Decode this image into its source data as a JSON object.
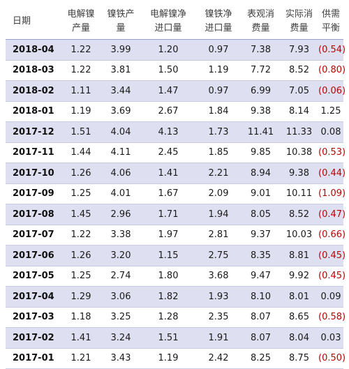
{
  "headers": [
    {
      "l1": "日期",
      "l2": ""
    },
    {
      "l1": "电解镍",
      "l2": "产量"
    },
    {
      "l1": "镍铁产",
      "l2": "量"
    },
    {
      "l1": "电解镍净",
      "l2": "进口量"
    },
    {
      "l1": "镍铁净",
      "l2": "进口量"
    },
    {
      "l1": "表观消",
      "l2": "费量"
    },
    {
      "l1": "实际消",
      "l2": "费量"
    },
    {
      "l1": "供需",
      "l2": "平衡"
    }
  ],
  "rows": [
    {
      "date": "2018-04",
      "v1": "1.22",
      "v2": "3.99",
      "v3": "1.20",
      "v4": "0.97",
      "v5": "7.38",
      "v6": "7.93",
      "v7": "(0.54)",
      "neg": true
    },
    {
      "date": "2018-03",
      "v1": "1.22",
      "v2": "3.81",
      "v3": "1.50",
      "v4": "1.19",
      "v5": "7.72",
      "v6": "8.52",
      "v7": "(0.80)",
      "neg": true
    },
    {
      "date": "2018-02",
      "v1": "1.11",
      "v2": "3.44",
      "v3": "1.47",
      "v4": "0.97",
      "v5": "6.99",
      "v6": "7.05",
      "v7": "(0.06)",
      "neg": true
    },
    {
      "date": "2018-01",
      "v1": "1.19",
      "v2": "3.69",
      "v3": "2.67",
      "v4": "1.84",
      "v5": "9.38",
      "v6": "8.14",
      "v7": "1.25",
      "neg": false
    },
    {
      "date": "2017-12",
      "v1": "1.51",
      "v2": "4.04",
      "v3": "4.13",
      "v4": "1.73",
      "v5": "11.41",
      "v6": "11.33",
      "v7": "0.08",
      "neg": false
    },
    {
      "date": "2017-11",
      "v1": "1.44",
      "v2": "4.11",
      "v3": "2.45",
      "v4": "1.85",
      "v5": "9.85",
      "v6": "10.38",
      "v7": "(0.53)",
      "neg": true
    },
    {
      "date": "2017-10",
      "v1": "1.26",
      "v2": "4.06",
      "v3": "1.41",
      "v4": "2.21",
      "v5": "8.94",
      "v6": "9.38",
      "v7": "(0.44)",
      "neg": true
    },
    {
      "date": "2017-09",
      "v1": "1.25",
      "v2": "4.01",
      "v3": "1.67",
      "v4": "2.09",
      "v5": "9.01",
      "v6": "10.11",
      "v7": "(1.09)",
      "neg": true
    },
    {
      "date": "2017-08",
      "v1": "1.45",
      "v2": "2.96",
      "v3": "1.71",
      "v4": "1.94",
      "v5": "8.05",
      "v6": "8.52",
      "v7": "(0.47)",
      "neg": true
    },
    {
      "date": "2017-07",
      "v1": "1.22",
      "v2": "3.38",
      "v3": "1.97",
      "v4": "2.81",
      "v5": "9.37",
      "v6": "10.03",
      "v7": "(0.66)",
      "neg": true
    },
    {
      "date": "2017-06",
      "v1": "1.26",
      "v2": "3.20",
      "v3": "1.15",
      "v4": "2.75",
      "v5": "8.35",
      "v6": "8.81",
      "v7": "(0.45)",
      "neg": true
    },
    {
      "date": "2017-05",
      "v1": "1.25",
      "v2": "2.74",
      "v3": "1.80",
      "v4": "3.68",
      "v5": "9.47",
      "v6": "9.92",
      "v7": "(0.45)",
      "neg": true
    },
    {
      "date": "2017-04",
      "v1": "1.29",
      "v2": "3.06",
      "v3": "1.82",
      "v4": "1.93",
      "v5": "8.10",
      "v6": "8.01",
      "v7": "0.09",
      "neg": false
    },
    {
      "date": "2017-03",
      "v1": "1.18",
      "v2": "3.25",
      "v3": "1.28",
      "v4": "2.35",
      "v5": "8.07",
      "v6": "8.65",
      "v7": "(0.58)",
      "neg": true
    },
    {
      "date": "2017-02",
      "v1": "1.41",
      "v2": "3.24",
      "v3": "1.51",
      "v4": "1.91",
      "v5": "8.07",
      "v6": "8.04",
      "v7": "0.03",
      "neg": false
    },
    {
      "date": "2017-01",
      "v1": "1.21",
      "v2": "3.43",
      "v3": "1.19",
      "v4": "2.42",
      "v5": "8.25",
      "v6": "8.75",
      "v7": "(0.50)",
      "neg": true
    }
  ]
}
